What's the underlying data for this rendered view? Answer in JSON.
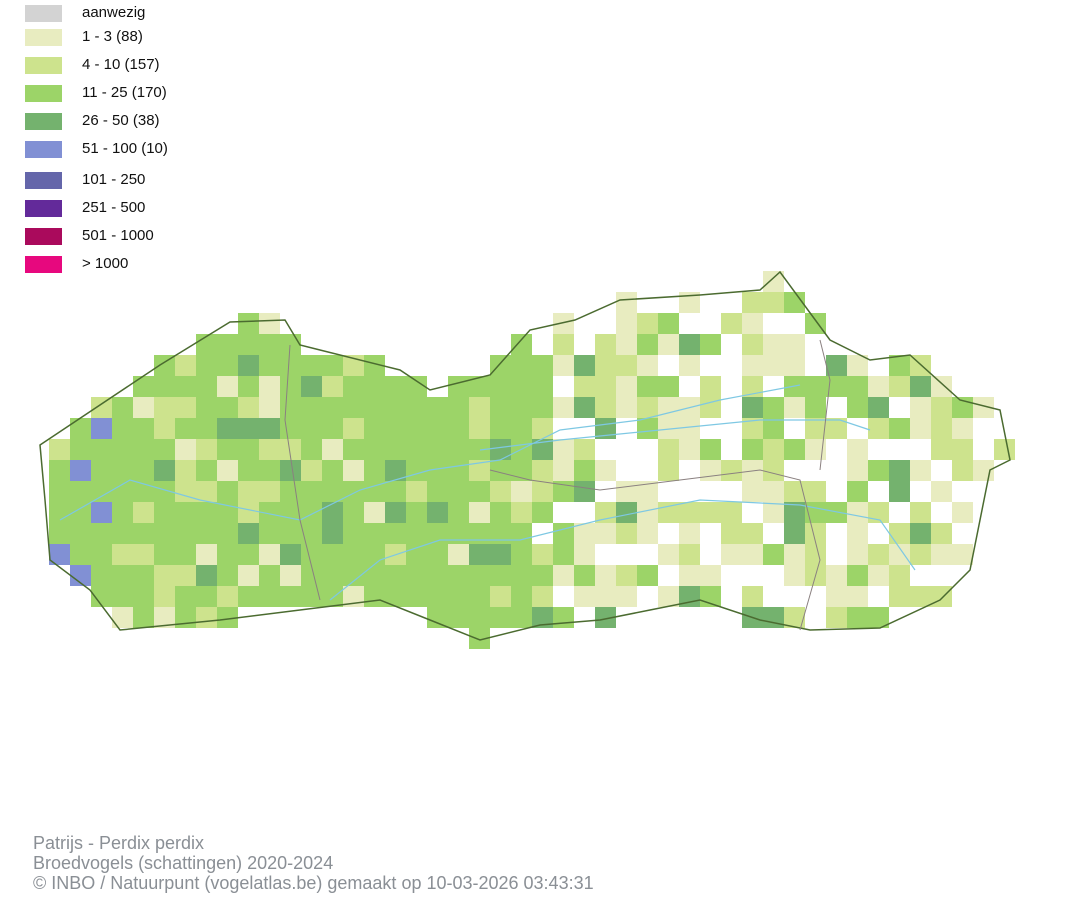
{
  "legend": [
    {
      "label": "aanwezig",
      "color": "#d3d3d3"
    },
    {
      "label": "1 - 3 (88)",
      "color": "#e8ecc0"
    },
    {
      "label": "4 - 10 (157)",
      "color": "#cde38d"
    },
    {
      "label": "11 - 25 (170)",
      "color": "#9cd468"
    },
    {
      "label": "26 - 50 (38)",
      "color": "#74b26e"
    },
    {
      "label": "51 - 100 (10)",
      "color": "#8190d4"
    },
    {
      "label": "101 - 250",
      "color": "#6466aa"
    },
    {
      "label": "251 - 500",
      "color": "#632a9a"
    },
    {
      "label": "501 - 1000",
      "color": "#aa0a5c"
    },
    {
      "label": "> 1000",
      "color": "#e7087e"
    }
  ],
  "caption": {
    "species": "Patrijs - Perdix perdix",
    "dataset": "Broedvogels (schattingen) 2020-2024",
    "credit": "© INBO / Natuurpunt (vogelatlas.be) gemaakt op 10-03-2026 03:43:31"
  }
}
